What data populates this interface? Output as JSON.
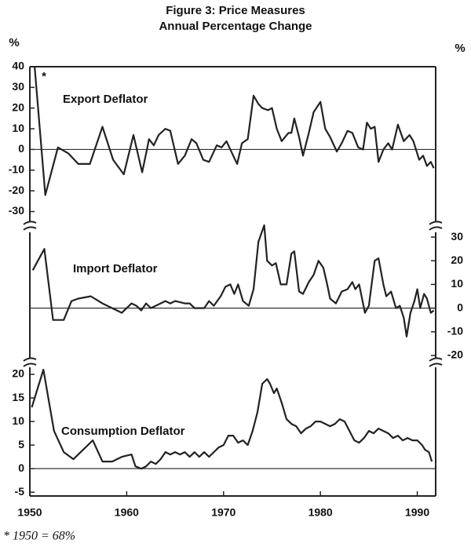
{
  "title": "Figure 3: Price Measures",
  "subtitle": "Annual Percentage Change",
  "footnote": "* 1950 = 68%",
  "chart_data": [
    {
      "type": "line",
      "ylabel": "%",
      "annotation": "*",
      "axis_side": "left",
      "xlim": [
        1950,
        1991.9
      ],
      "ylim": [
        -37,
        40
      ],
      "yticks": [
        40,
        30,
        20,
        10,
        0,
        -10,
        -20,
        -30
      ],
      "x": [
        1950.0,
        1951.6,
        1952.9,
        1954,
        1955,
        1956.2,
        1957.5,
        1958.6,
        1959.7,
        1960.7,
        1961.6,
        1962.0,
        1962.3,
        1962.8,
        1963.3,
        1964,
        1964.5,
        1965.3,
        1966,
        1966.7,
        1967.2,
        1967.9,
        1968.5,
        1969.3,
        1969.8,
        1970.3,
        1970.8,
        1971.4,
        1971.9,
        1972.5,
        1973.1,
        1973.6,
        1974,
        1974.6,
        1975,
        1975.5,
        1976,
        1976.7,
        1977,
        1977.3,
        1977.8,
        1978.2,
        1978.8,
        1979.3,
        1980,
        1980.5,
        1981,
        1981.7,
        1982.2,
        1982.8,
        1983.3,
        1983.9,
        1984.4,
        1984.8,
        1985.2,
        1985.6,
        1986,
        1986.5,
        1987,
        1987.4,
        1988,
        1988.6,
        1989.2,
        1989.6,
        1990.2,
        1990.6,
        1991,
        1991.4,
        1991.7
      ],
      "series": [
        {
          "name": "Export Deflator",
          "color": "#222222",
          "values": [
            68,
            -22,
            1,
            -2,
            -7,
            -7,
            11,
            -5,
            -12,
            7,
            -11,
            -2,
            5,
            2,
            7,
            10,
            9,
            -7,
            -3,
            5,
            3,
            -5,
            -6,
            2,
            1,
            4,
            -1,
            -7,
            3,
            5,
            26,
            22,
            20,
            19,
            20,
            10,
            4,
            8,
            8,
            15,
            6,
            -3,
            8,
            18,
            23,
            10,
            6,
            -1,
            3,
            9,
            8,
            1,
            0,
            13,
            10,
            11,
            -6,
            0,
            3,
            0,
            12,
            4,
            7,
            4,
            -5,
            -3,
            -8,
            -6,
            -9
          ]
        }
      ]
    },
    {
      "type": "line",
      "ylabel": "%",
      "axis_side": "right",
      "xlim": [
        1950,
        1991.9
      ],
      "ylim": [
        -23,
        35
      ],
      "yticks": [
        30,
        20,
        10,
        0,
        -10,
        -20
      ],
      "x": [
        1950.3,
        1951.5,
        1952.4,
        1953.5,
        1954.3,
        1955,
        1956.3,
        1957.5,
        1959.5,
        1960.5,
        1961,
        1961.5,
        1962,
        1962.5,
        1963,
        1964,
        1964.5,
        1965,
        1966,
        1966.5,
        1967,
        1968,
        1968.5,
        1969,
        1969.7,
        1970.2,
        1970.7,
        1971.1,
        1971.5,
        1972,
        1972.6,
        1973.1,
        1973.6,
        1974.2,
        1974.5,
        1975,
        1975.4,
        1975.9,
        1976.5,
        1977,
        1977.3,
        1977.8,
        1978.2,
        1978.8,
        1979.3,
        1979.8,
        1980.3,
        1980.7,
        1981,
        1981.6,
        1982.2,
        1982.8,
        1983.3,
        1983.6,
        1984,
        1984.6,
        1985,
        1985.6,
        1986,
        1986.5,
        1986.8,
        1987.3,
        1987.8,
        1988.2,
        1988.6,
        1988.9,
        1989.3,
        1989.7,
        1990,
        1990.3,
        1990.7,
        1991,
        1991.4,
        1991.7
      ],
      "series": [
        {
          "name": "Import Deflator",
          "color": "#222222",
          "values": [
            16,
            25,
            -5,
            -5,
            3,
            4,
            5,
            2,
            -2,
            2,
            1,
            -1,
            2,
            0,
            1,
            3,
            2,
            3,
            2,
            2,
            0,
            0,
            3,
            1,
            5,
            9,
            10,
            6,
            10,
            3,
            1,
            8,
            28,
            35,
            20,
            18,
            19,
            10,
            10,
            23,
            24,
            7,
            6,
            11,
            14,
            20,
            17,
            10,
            4,
            2,
            7,
            8,
            11,
            8,
            10,
            -2,
            1,
            20,
            21,
            10,
            5,
            7,
            0,
            1,
            -4,
            -12,
            -2,
            3,
            8,
            0,
            6,
            4,
            -2,
            -1
          ]
        }
      ]
    },
    {
      "type": "line",
      "axis_side": "left",
      "xlim": [
        1950,
        1991.9
      ],
      "ylim": [
        -5.8,
        22.5
      ],
      "yticks": [
        20,
        15,
        10,
        5,
        0,
        -5
      ],
      "xticks": [
        1950,
        1960,
        1970,
        1980,
        1990
      ],
      "x": [
        1950.2,
        1951.4,
        1952.5,
        1953.5,
        1954.5,
        1955.5,
        1956.5,
        1957.5,
        1958.5,
        1959.5,
        1960.5,
        1960.9,
        1961.5,
        1962,
        1962.5,
        1963,
        1963.5,
        1964,
        1964.5,
        1965,
        1965.5,
        1966,
        1966.5,
        1967,
        1967.5,
        1968,
        1968.5,
        1969,
        1969.5,
        1970,
        1970.5,
        1971,
        1971.5,
        1972,
        1972.5,
        1973,
        1973.5,
        1974,
        1974.5,
        1974.8,
        1975.2,
        1975.5,
        1976,
        1976.5,
        1977,
        1977.5,
        1978,
        1978.5,
        1979,
        1979.5,
        1980,
        1980.5,
        1981,
        1981.5,
        1982,
        1982.5,
        1983,
        1983.5,
        1984,
        1984.5,
        1985,
        1985.5,
        1986,
        1986.5,
        1987,
        1987.5,
        1988,
        1988.5,
        1989,
        1989.5,
        1990,
        1990.5,
        1990.8,
        1991.2,
        1991.5
      ],
      "series": [
        {
          "name": "Consumption Deflator",
          "color": "#222222",
          "values": [
            13,
            21,
            8,
            3.5,
            2,
            4,
            6,
            1.5,
            1.5,
            2.5,
            3,
            0.5,
            0,
            0.5,
            1.5,
            1,
            2,
            3.5,
            3,
            3.5,
            3,
            3.5,
            2.5,
            3.5,
            2.5,
            3.5,
            2.5,
            3.5,
            4.5,
            5,
            7,
            7,
            5.5,
            6,
            5,
            8,
            12,
            18,
            19,
            18,
            16,
            17,
            14,
            10.5,
            9.5,
            9,
            7.5,
            8.5,
            9,
            10,
            10,
            9.5,
            9,
            9.5,
            10.5,
            10,
            8,
            6,
            5.5,
            6.5,
            8,
            7.5,
            8.5,
            8,
            7.5,
            6.5,
            7,
            6,
            6.5,
            6,
            6,
            5,
            4,
            3.5,
            1.5
          ]
        }
      ]
    }
  ]
}
